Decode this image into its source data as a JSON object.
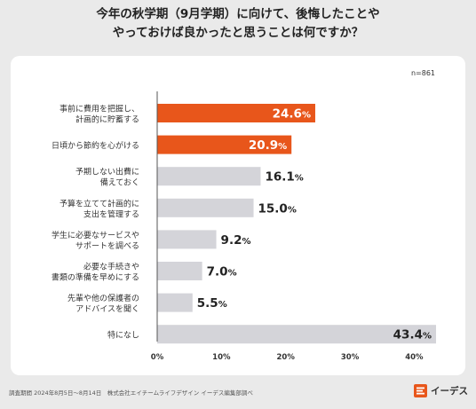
{
  "header": {
    "title_line1": "今年の秋学期（9月学期）に向けて、後悔したことや",
    "title_line2": "やっておけば良かったと思うことは何ですか？"
  },
  "sample_label": "n=861",
  "footer": {
    "note": "調査期間 2024年8月5日〜8月14日　株式会社エイチームライフデザイン イーデス編集部調べ",
    "logo_text": "イーデス"
  },
  "colors": {
    "highlight": "#e8561b",
    "neutral": "#d4d4d9",
    "axis": "#555555"
  },
  "chart_data": {
    "type": "bar",
    "orientation": "horizontal",
    "categories": [
      [
        "事前に費用を把握し、",
        "計画的に貯蓄する"
      ],
      [
        "日頃から節約を心がける"
      ],
      [
        "予期しない出費に",
        "備えておく"
      ],
      [
        "予算を立てて計画的に",
        "支出を管理する"
      ],
      [
        "学生に必要なサービスや",
        "サポートを調べる"
      ],
      [
        "必要な手続きや",
        "書類の準備を早めにする"
      ],
      [
        "先輩や他の保護者の",
        "アドバイスを聞く"
      ],
      [
        "特になし"
      ]
    ],
    "values": [
      24.6,
      20.9,
      16.1,
      15.0,
      9.2,
      7.0,
      5.5,
      43.4
    ],
    "value_labels": [
      "24.6",
      "20.9",
      "16.1",
      "15.0",
      "9.2",
      "7.0",
      "5.5",
      "43.4"
    ],
    "unit": "%",
    "highlighted": [
      true,
      true,
      false,
      false,
      false,
      false,
      false,
      false
    ],
    "xlim": [
      0,
      43.4
    ],
    "xticks": [
      0,
      10,
      20,
      30,
      40
    ],
    "xtick_labels": [
      "0%",
      "10%",
      "20%",
      "30%",
      "40%"
    ],
    "grid": false
  }
}
